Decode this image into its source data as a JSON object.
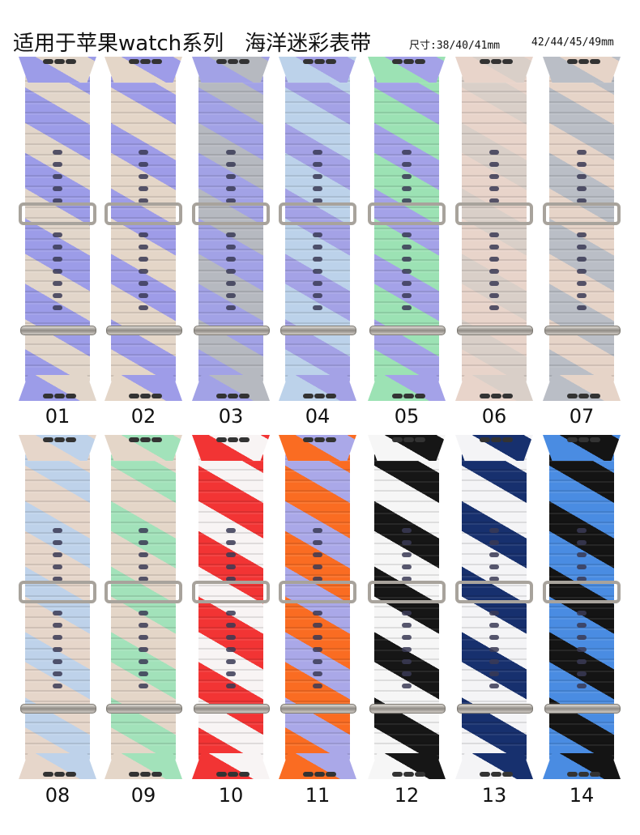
{
  "header": {
    "title": "适用于苹果watch系列",
    "subtitle": "海洋迷彩表带",
    "size_label": "尺寸:38/40/41mm",
    "size_label_2": "42/44/45/49mm"
  },
  "straps": [
    {
      "label": "01",
      "colors": [
        "#9c9ce8",
        "#e2d6ca"
      ]
    },
    {
      "label": "02",
      "colors": [
        "#e4d6c8",
        "#9e9ce8"
      ]
    },
    {
      "label": "03",
      "colors": [
        "#a2a2e6",
        "#b6b9c0"
      ]
    },
    {
      "label": "04",
      "colors": [
        "#bcd2ea",
        "#a4a2e6"
      ]
    },
    {
      "label": "05",
      "colors": [
        "#9ce2b4",
        "#a4a2e8"
      ]
    },
    {
      "label": "06",
      "colors": [
        "#e8d4ca",
        "#d9cfc8"
      ]
    },
    {
      "label": "07",
      "colors": [
        "#babec6",
        "#e6d4c8"
      ]
    },
    {
      "label": "08",
      "colors": [
        "#e6d6ca",
        "#bed2ea"
      ]
    },
    {
      "label": "09",
      "colors": [
        "#e4d6c8",
        "#a2e2ba"
      ]
    },
    {
      "label": "10",
      "colors": [
        "#f23434",
        "#f8f4f4"
      ]
    },
    {
      "label": "11",
      "colors": [
        "#fa6c22",
        "#aaa8e8"
      ]
    },
    {
      "label": "12",
      "colors": [
        "#f6f6f6",
        "#161616"
      ]
    },
    {
      "label": "13",
      "colors": [
        "#f4f4f6",
        "#17306e"
      ]
    },
    {
      "label": "14",
      "colors": [
        "#4a8ce2",
        "#141414"
      ]
    }
  ]
}
